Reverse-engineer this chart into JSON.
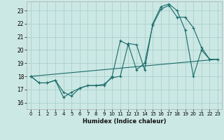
{
  "background_color": "#cce8e4",
  "grid_color": "#aacfcb",
  "line_color": "#1a6b6b",
  "marker_color": "#1a6b6b",
  "xlabel": "Humidex (Indice chaleur)",
  "ylim": [
    15.5,
    23.7
  ],
  "xlim": [
    -0.5,
    23.5
  ],
  "yticks": [
    16,
    17,
    18,
    19,
    20,
    21,
    22,
    23
  ],
  "xticks": [
    0,
    1,
    2,
    3,
    4,
    5,
    6,
    7,
    8,
    9,
    10,
    11,
    12,
    13,
    14,
    15,
    16,
    17,
    18,
    19,
    20,
    21,
    22,
    23
  ],
  "series1_x": [
    0,
    1,
    2,
    3,
    4,
    5,
    6,
    7,
    8,
    9,
    10,
    11,
    12,
    13,
    14,
    15,
    16,
    17,
    18,
    19,
    20,
    21,
    22,
    23
  ],
  "series1_y": [
    18.0,
    17.5,
    17.5,
    17.7,
    16.8,
    16.5,
    17.1,
    17.3,
    17.3,
    17.3,
    18.0,
    20.7,
    20.4,
    18.5,
    19.0,
    21.9,
    23.1,
    23.4,
    22.5,
    22.5,
    21.7,
    20.2,
    19.3,
    19.3
  ],
  "series2_x": [
    0,
    1,
    2,
    3,
    4,
    5,
    6,
    7,
    8,
    9,
    10,
    11,
    12,
    13,
    14,
    15,
    16,
    17,
    18,
    19,
    20,
    21,
    22,
    23
  ],
  "series2_y": [
    18.0,
    17.5,
    17.5,
    17.7,
    16.4,
    16.8,
    17.1,
    17.3,
    17.3,
    17.4,
    17.9,
    18.0,
    20.5,
    20.4,
    18.5,
    22.0,
    23.3,
    23.5,
    23.0,
    21.5,
    18.0,
    20.0,
    19.3,
    19.3
  ],
  "series3_x": [
    0,
    23
  ],
  "series3_y": [
    18.0,
    19.3
  ]
}
